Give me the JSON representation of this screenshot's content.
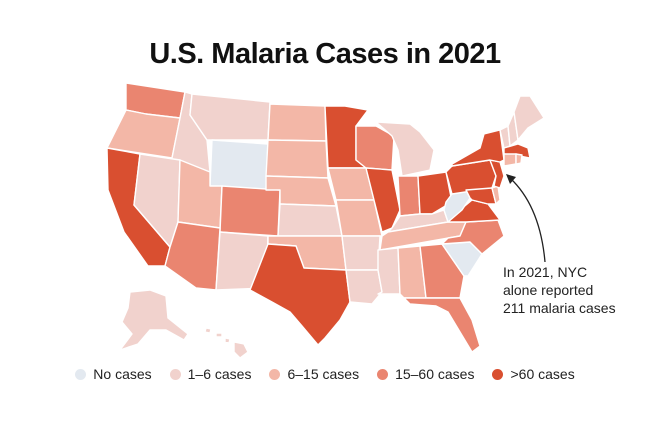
{
  "title": "U.S. Malaria Cases in 2021",
  "annotation": {
    "lines": [
      "In 2021, NYC",
      "alone reported",
      "211 malaria cases"
    ]
  },
  "legend": [
    {
      "key": "none",
      "label": "No cases",
      "color": "#e3e9f0"
    },
    {
      "key": "c1",
      "label": "1–6 cases",
      "color": "#f1d2cd"
    },
    {
      "key": "c2",
      "label": "6–15 cases",
      "color": "#f3b7a7"
    },
    {
      "key": "c3",
      "label": "15–60 cases",
      "color": "#ea8570"
    },
    {
      "key": "c4",
      "label": ">60 cases",
      "color": "#d94f30"
    }
  ],
  "states": {
    "none": [
      "Wyoming",
      "West Virginia",
      "South Carolina"
    ],
    "c1": [
      "Montana",
      "Idaho",
      "Nevada",
      "New Mexico",
      "Kansas",
      "Arkansas",
      "Mississippi",
      "Kentucky",
      "Louisiana",
      "Vermont",
      "New Hampshire",
      "Maine",
      "Michigan",
      "Hawaii",
      "Alaska"
    ],
    "c2": [
      "Oregon",
      "Utah",
      "North Dakota",
      "South Dakota",
      "Nebraska",
      "Missouri",
      "Oklahoma",
      "Iowa",
      "Alabama",
      "Tennessee",
      "Rhode Island",
      "Connecticut",
      "Delaware"
    ],
    "c3": [
      "Washington",
      "Colorado",
      "Arizona",
      "Wisconsin",
      "Indiana",
      "North Carolina",
      "Georgia",
      "Florida"
    ],
    "c4": [
      "California",
      "Texas",
      "Minnesota",
      "Illinois",
      "Ohio",
      "Pennsylvania",
      "New York",
      "New Jersey",
      "Virginia",
      "Maryland",
      "Massachusetts"
    ]
  }
}
